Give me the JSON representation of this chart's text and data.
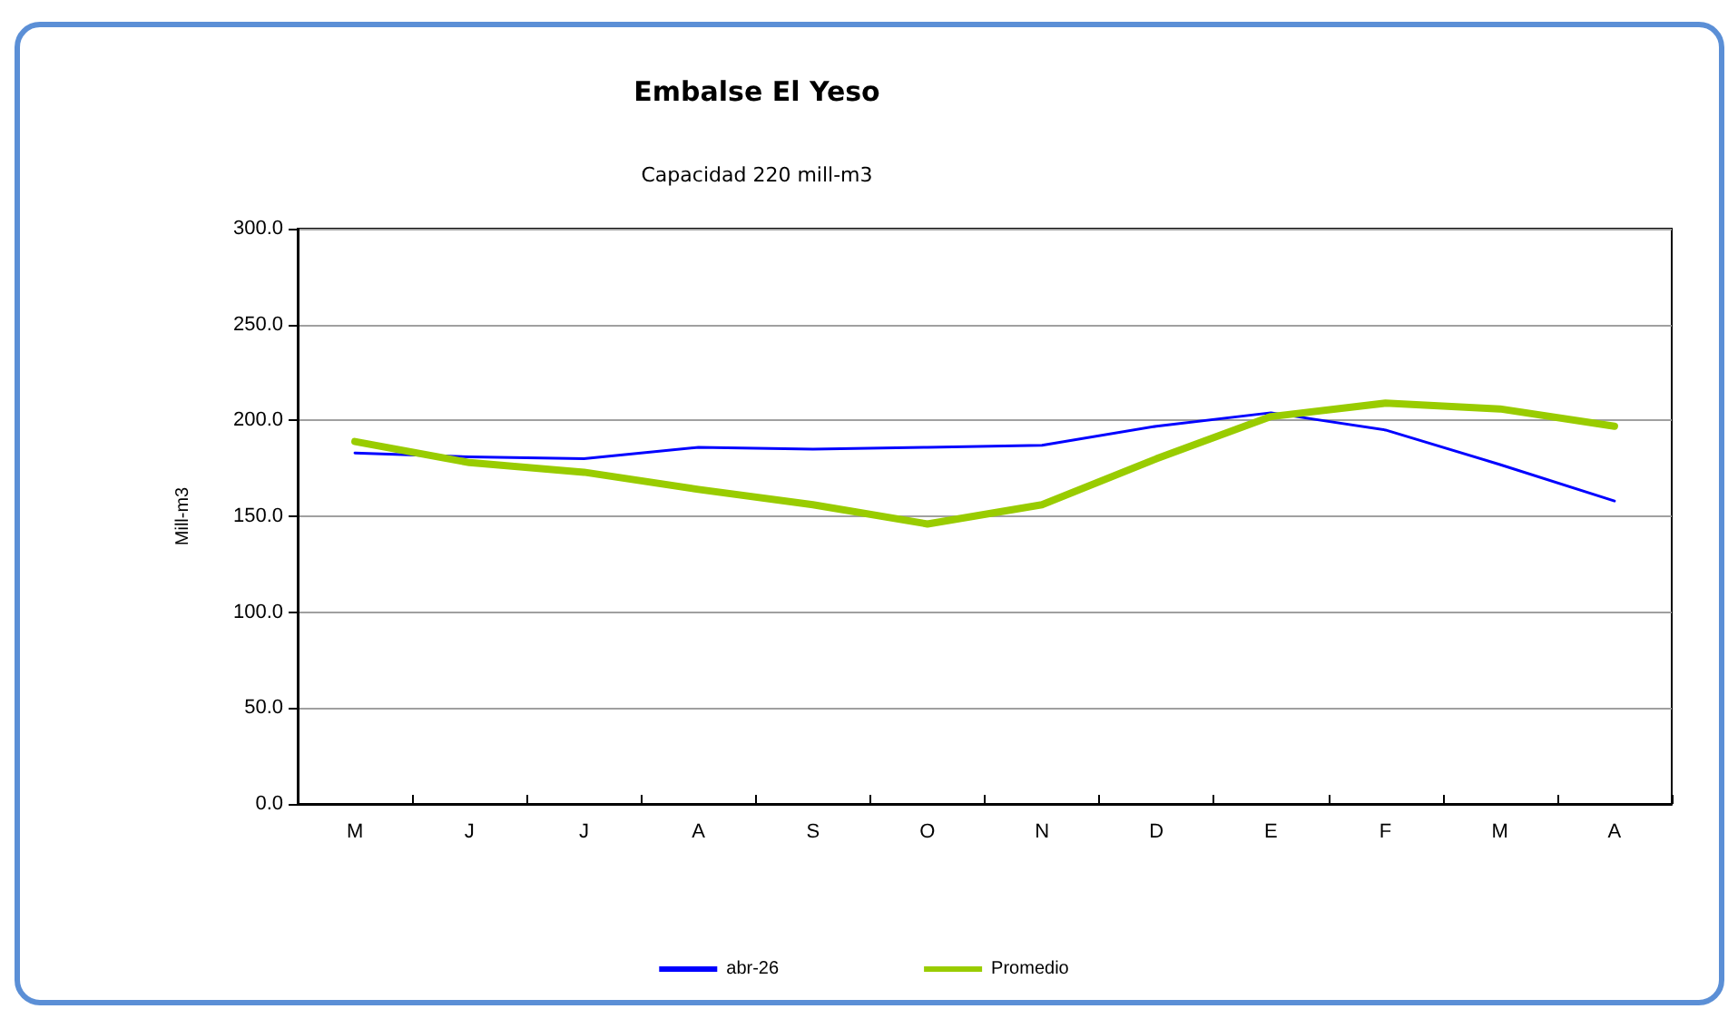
{
  "chart_data": {
    "type": "line",
    "title": "Embalse El Yeso",
    "subtitle": "Capacidad 220 mill-m3",
    "ylabel": "Mill-m3",
    "categories": [
      "M",
      "J",
      "J",
      "A",
      "S",
      "O",
      "N",
      "D",
      "E",
      "F",
      "M",
      "A"
    ],
    "series": [
      {
        "name": "abr-26",
        "color": "#0000ff",
        "values": [
          183,
          181,
          180,
          186,
          185,
          186,
          187,
          197,
          204,
          195,
          177,
          158
        ]
      },
      {
        "name": "Promedio",
        "color": "#99cc00",
        "values": [
          189,
          178,
          173,
          164,
          156,
          146,
          156,
          180,
          202,
          209,
          206,
          197
        ]
      }
    ],
    "ylim": [
      0,
      300
    ],
    "yticks": [
      {
        "value": 0,
        "label": "0.0"
      },
      {
        "value": 50,
        "label": "50.0"
      },
      {
        "value": 100,
        "label": "100.0"
      },
      {
        "value": 150,
        "label": "150.0"
      },
      {
        "value": 200,
        "label": "200.0"
      },
      {
        "value": 250,
        "label": "250.0"
      },
      {
        "value": 300,
        "label": "300.0"
      }
    ],
    "grid": "y",
    "legend": "bottom",
    "marker": "none",
    "line_style": "solid"
  }
}
